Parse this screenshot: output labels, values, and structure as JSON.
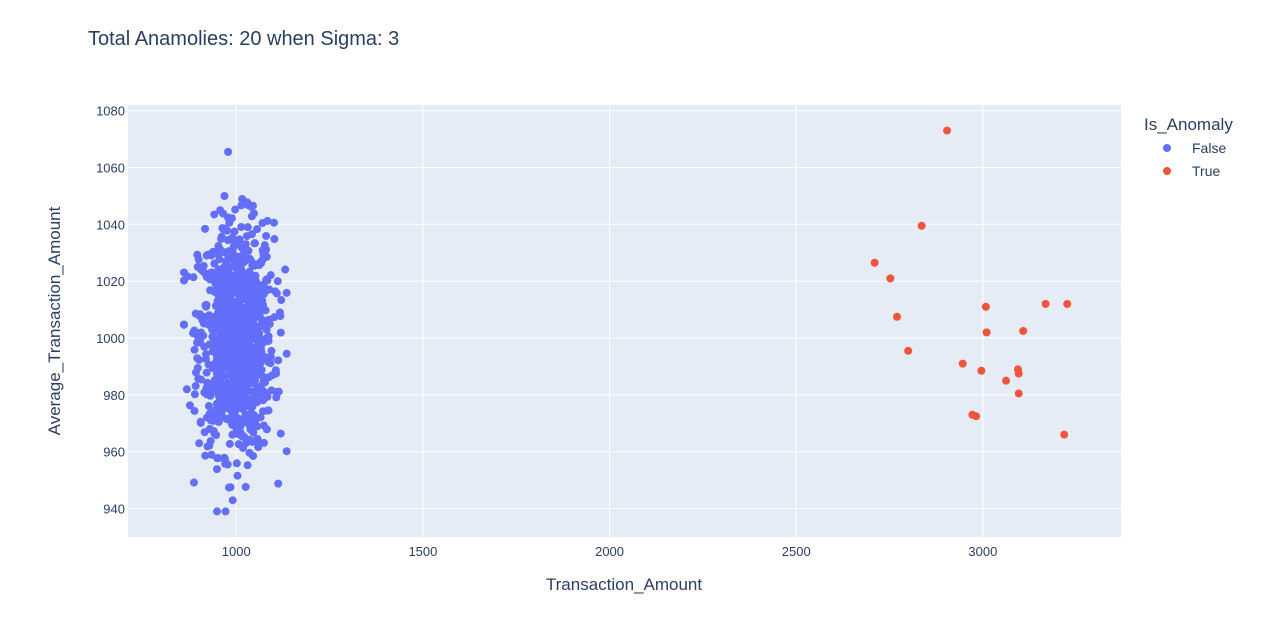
{
  "chart_data": {
    "type": "scatter",
    "title": "Total Anamolies: 20 when Sigma: 3",
    "xlabel": "Transaction_Amount",
    "ylabel": "Average_Transaction_Amount",
    "xlim": [
      710,
      3370
    ],
    "ylim": [
      930,
      1082
    ],
    "xticks": [
      1000,
      1500,
      2000,
      2500,
      3000
    ],
    "yticks": [
      940,
      960,
      980,
      1000,
      1020,
      1040,
      1060,
      1080
    ],
    "grid": true,
    "legend": {
      "title": "Is_Anomaly",
      "placement": "top-right",
      "entries": [
        "False",
        "True"
      ]
    },
    "colors": {
      "False": "#636efa",
      "True": "#ef553b",
      "plot_bg": "#e5ecf6"
    },
    "normal_cluster": {
      "count": 980,
      "x_mean": 1000,
      "x_std": 50,
      "y_mean": 1000,
      "y_std": 20
    },
    "series": [
      {
        "name": "True",
        "x": [
          2710,
          2752,
          2770,
          2800,
          2836,
          2904,
          2946,
          2972,
          2982,
          2996,
          3008,
          3010,
          3062,
          3094,
          3096,
          3096,
          3108,
          3168,
          3218,
          3226
        ],
        "y": [
          1026.5,
          1021,
          1007.5,
          995.5,
          1039.5,
          1073,
          991,
          973,
          972.5,
          988.5,
          1011,
          1002,
          985,
          989,
          987.5,
          980.5,
          1002.5,
          1012,
          966,
          1012
        ]
      }
    ]
  }
}
